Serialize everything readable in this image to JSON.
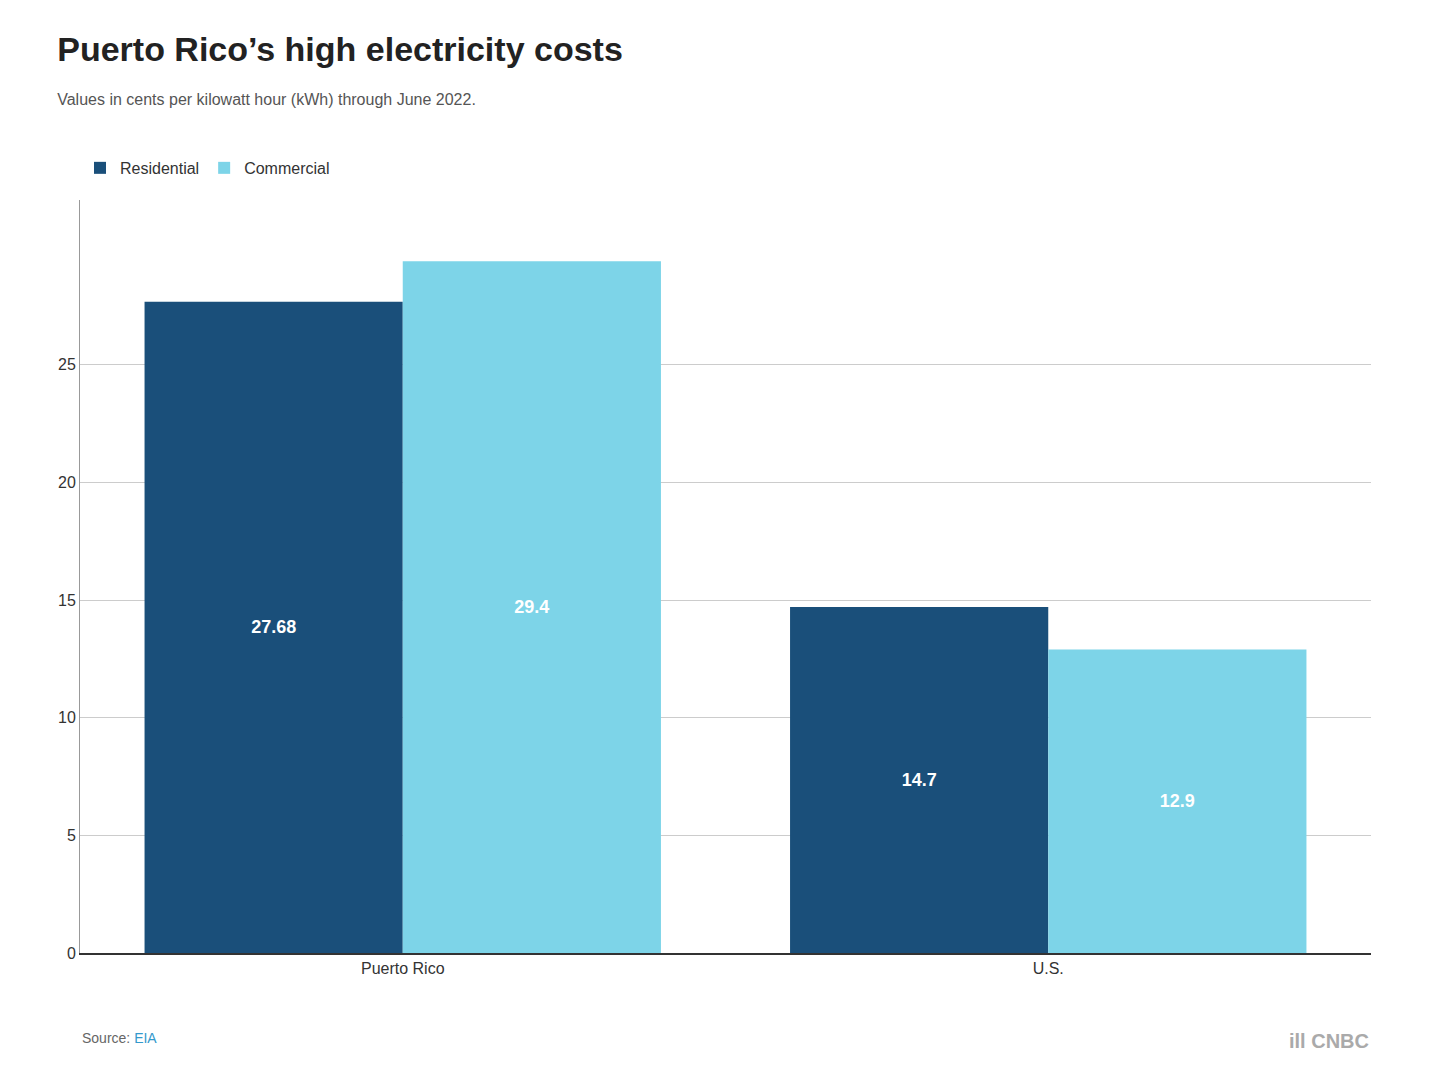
{
  "chart_data": {
    "type": "bar",
    "title": "Puerto Rico’s high electricity costs",
    "subtitle": "Values in cents per kilowatt hour (kWh) through June 2022.",
    "categories": [
      "Puerto Rico",
      "U.S."
    ],
    "series": [
      {
        "name": "Residential",
        "color": "#1a4f7a",
        "values": [
          27.68,
          14.7
        ]
      },
      {
        "name": "Commercial",
        "color": "#7dd4e8",
        "values": [
          29.4,
          12.9
        ]
      }
    ],
    "ylim": [
      0,
      32
    ],
    "yticks": [
      0,
      5,
      10,
      15,
      20,
      25
    ],
    "grid": true,
    "legend": "upper left",
    "data_labels": true,
    "annotations": [
      "Source: ",
      "EIA",
      "ill CNBC"
    ]
  }
}
